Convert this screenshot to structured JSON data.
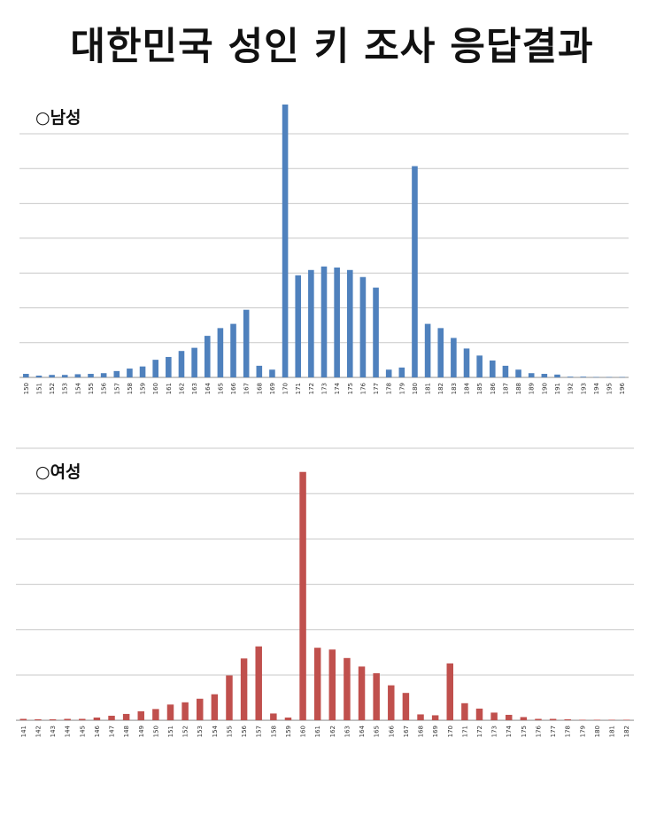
{
  "page": {
    "title": "대한민국 성인 키 조사 응답결과"
  },
  "chart_data": [
    {
      "type": "bar",
      "title": "○남성",
      "color": "#4f81bd",
      "grid": true,
      "ylim": [
        0,
        780
      ],
      "categories": [
        "150",
        "151",
        "152",
        "153",
        "154",
        "155",
        "156",
        "157",
        "158",
        "159",
        "160",
        "161",
        "162",
        "163",
        "164",
        "165",
        "166",
        "167",
        "168",
        "169",
        "170",
        "171",
        "172",
        "173",
        "174",
        "175",
        "176",
        "177",
        "178",
        "179",
        "180",
        "181",
        "182",
        "183",
        "184",
        "185",
        "186",
        "187",
        "188",
        "189",
        "190",
        "191",
        "192",
        "193",
        "194",
        "195",
        "196"
      ],
      "values": [
        10,
        5,
        7,
        7,
        9,
        10,
        12,
        18,
        25,
        31,
        50,
        58,
        75,
        84,
        118,
        140,
        152,
        192,
        33,
        22,
        775,
        290,
        305,
        315,
        312,
        305,
        285,
        255,
        22,
        28,
        600,
        152,
        140,
        112,
        82,
        62,
        48,
        33,
        22,
        12,
        10,
        8,
        2,
        2,
        1,
        1,
        1
      ]
    },
    {
      "type": "bar",
      "title": "○여성",
      "color": "#c0504d",
      "grid": true,
      "ylim": [
        0,
        600
      ],
      "categories": [
        "141",
        "142",
        "143",
        "144",
        "145",
        "146",
        "147",
        "148",
        "149",
        "150",
        "151",
        "152",
        "153",
        "154",
        "155",
        "156",
        "157",
        "158",
        "159",
        "160",
        "161",
        "162",
        "163",
        "164",
        "165",
        "166",
        "167",
        "168",
        "169",
        "170",
        "171",
        "172",
        "173",
        "174",
        "175",
        "176",
        "177",
        "178",
        "179",
        "180",
        "181",
        "182"
      ],
      "values": [
        3,
        2,
        2,
        3,
        3,
        6,
        10,
        14,
        20,
        25,
        35,
        40,
        48,
        58,
        100,
        138,
        165,
        15,
        6,
        555,
        162,
        158,
        139,
        120,
        105,
        78,
        61,
        13,
        11,
        127,
        38,
        26,
        17,
        12,
        7,
        3,
        3,
        2,
        1,
        1,
        1,
        1
      ]
    }
  ]
}
